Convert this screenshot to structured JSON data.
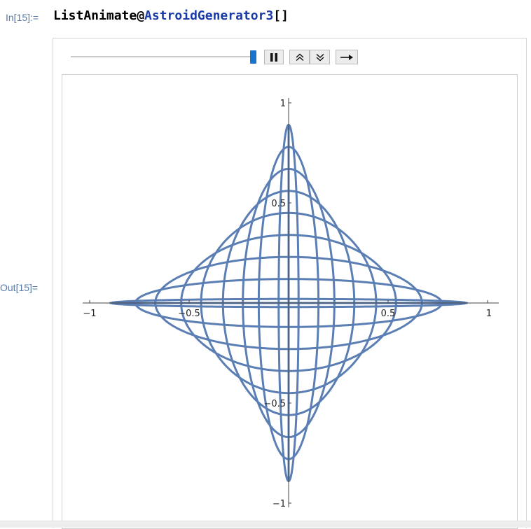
{
  "input": {
    "label": "In[15]:=",
    "code_head": "ListAnimate@",
    "code_symbol": "AstroidGenerator3",
    "code_tail": "[]"
  },
  "output": {
    "label": "Out[15]="
  },
  "animator": {
    "slider_position": 1.0,
    "buttons": [
      "pause-icon",
      "faster-icon",
      "slower-icon",
      "direction-forward-icon"
    ]
  },
  "chart_data": {
    "type": "line",
    "title": "",
    "xlabel": "",
    "ylabel": "",
    "xlim": [
      -1.05,
      1.05
    ],
    "ylim": [
      -1.0,
      1.0
    ],
    "x_ticks": [
      "−1",
      "−0.5",
      "0.5",
      "1"
    ],
    "y_ticks": [
      "1",
      "0.5",
      "−0.5",
      "−1"
    ],
    "color": "#5b7fb4",
    "series": [
      {
        "a": 0.0,
        "b": 0.89
      },
      {
        "a": 0.05,
        "b": 0.89
      },
      {
        "a": 0.15,
        "b": 0.78
      },
      {
        "a": 0.23,
        "b": 0.67
      },
      {
        "a": 0.33,
        "b": 0.56
      },
      {
        "a": 0.44,
        "b": 0.45
      },
      {
        "a": 0.54,
        "b": 0.34
      },
      {
        "a": 0.67,
        "b": 0.23
      },
      {
        "a": 0.77,
        "b": 0.12
      },
      {
        "a": 0.89,
        "b": 0.02
      },
      {
        "a": 0.9,
        "b": 0.0
      }
    ]
  }
}
